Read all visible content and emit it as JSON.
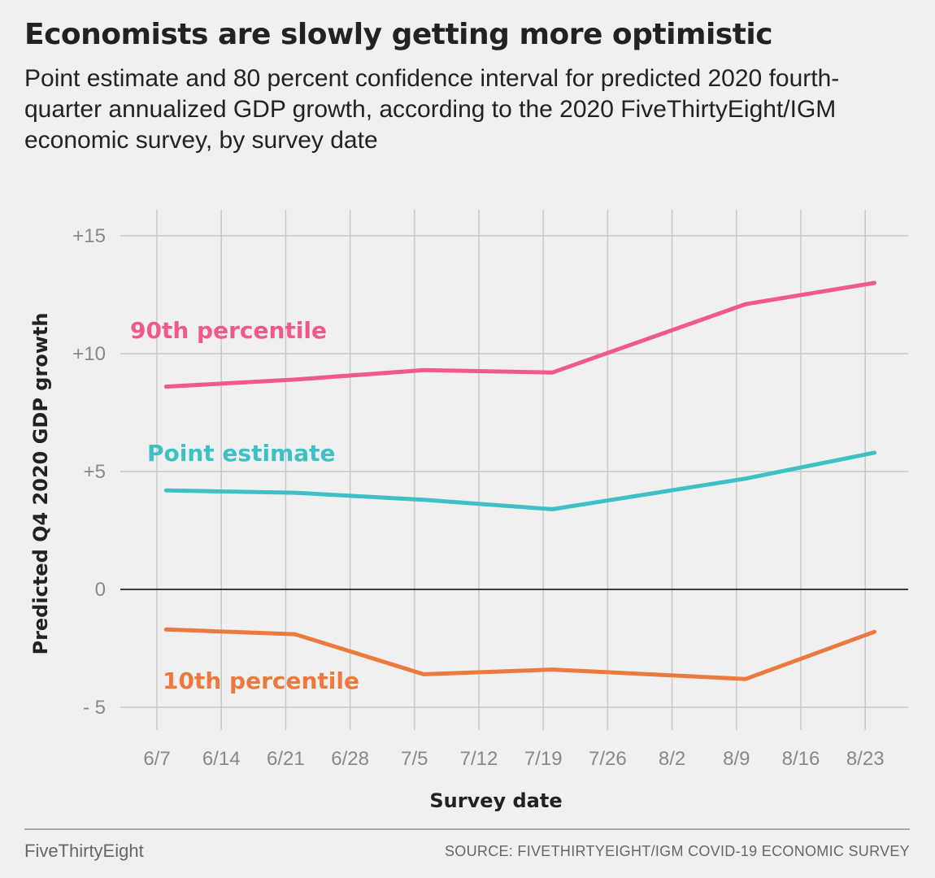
{
  "header": {
    "title": "Economists are slowly getting more optimistic",
    "subtitle": "Point estimate and 80 percent confidence interval for predicted 2020 fourth-quarter annualized GDP growth, according to the 2020 FiveThirtyEight/IGM economic survey, by survey date"
  },
  "footer": {
    "brand": "FiveThirtyEight",
    "source": "SOURCE: FIVETHIRTYEIGHT/IGM COVID-19 ECONOMIC SURVEY"
  },
  "colors": {
    "p90": "#f1588c",
    "point": "#3ec1c6",
    "p10": "#ec7a3e",
    "grid": "#c8c8c8",
    "zero": "#222222"
  },
  "chart_data": {
    "type": "line",
    "title": "Economists are slowly getting more optimistic",
    "xlabel": "Survey date",
    "ylabel": "Predicted Q4 2020 GDP growth",
    "x_ticks": [
      "6/7",
      "6/14",
      "6/21",
      "6/28",
      "7/5",
      "7/12",
      "7/19",
      "7/26",
      "8/2",
      "8/9",
      "8/16",
      "8/23"
    ],
    "y_ticks": [
      {
        "value": 15,
        "label": "+15"
      },
      {
        "value": 10,
        "label": "+10"
      },
      {
        "value": 5,
        "label": "+5"
      },
      {
        "value": 0,
        "label": "0"
      },
      {
        "value": -5,
        "label": "- 5"
      }
    ],
    "ylim": [
      -6,
      16
    ],
    "xlim": [
      "6/7",
      "8/23"
    ],
    "grid": true,
    "series": [
      {
        "name": "90th percentile",
        "color": "#f1588c",
        "x": [
          "6/8",
          "6/22",
          "7/6",
          "7/20",
          "8/10",
          "8/24"
        ],
        "values": [
          8.6,
          8.9,
          9.3,
          9.2,
          12.1,
          13.0
        ]
      },
      {
        "name": "Point estimate",
        "color": "#3ec1c6",
        "x": [
          "6/8",
          "6/22",
          "7/6",
          "7/20",
          "8/10",
          "8/24"
        ],
        "values": [
          4.2,
          4.1,
          3.8,
          3.4,
          4.7,
          5.8
        ]
      },
      {
        "name": "10th percentile",
        "color": "#ec7a3e",
        "x": [
          "6/8",
          "6/22",
          "7/6",
          "7/20",
          "8/10",
          "8/24"
        ],
        "values": [
          -1.7,
          -1.9,
          -3.6,
          -3.4,
          -3.8,
          -1.8
        ]
      }
    ]
  }
}
